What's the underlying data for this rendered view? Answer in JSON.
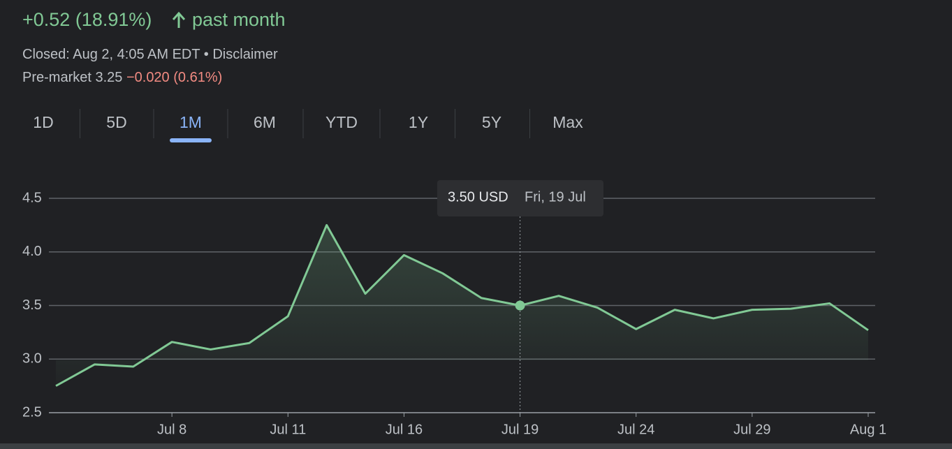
{
  "header": {
    "change": "+0.52 (18.91%)",
    "period": "past month",
    "closed": "Closed: Aug 2, 4:05 AM EDT",
    "separator": "•",
    "disclaimer": "Disclaimer",
    "premarket_label": "Pre-market 3.25",
    "premarket_change": "−0.020 (0.61%)"
  },
  "tabs": {
    "items": [
      "1D",
      "5D",
      "1M",
      "6M",
      "YTD",
      "1Y",
      "5Y",
      "Max"
    ],
    "selected": "1M"
  },
  "chart_data": {
    "type": "line",
    "categories": [
      null,
      null,
      null,
      "Jul 8",
      null,
      null,
      "Jul 11",
      null,
      null,
      "Jul 16",
      null,
      null,
      "Jul 19",
      null,
      null,
      "Jul 24",
      null,
      null,
      "Jul 29",
      null,
      null,
      "Aug 1"
    ],
    "series": [
      {
        "name": "Price",
        "color": "#81c995",
        "values": [
          2.75,
          2.95,
          2.93,
          3.16,
          3.09,
          3.15,
          3.4,
          4.25,
          3.61,
          3.97,
          3.8,
          3.57,
          3.5,
          3.59,
          3.48,
          3.28,
          3.46,
          3.38,
          3.46,
          3.47,
          3.52,
          3.27
        ]
      }
    ],
    "ylim": [
      2.5,
      4.5
    ],
    "yticks": [
      2.5,
      {
        "value": 3,
        "label": "3.0"
      },
      3.5,
      {
        "value": 4,
        "label": "4.0"
      },
      4.5
    ],
    "grid": true,
    "tooltip": {
      "price": "3.50 USD",
      "date": "Fri, 19 Jul"
    }
  }
}
